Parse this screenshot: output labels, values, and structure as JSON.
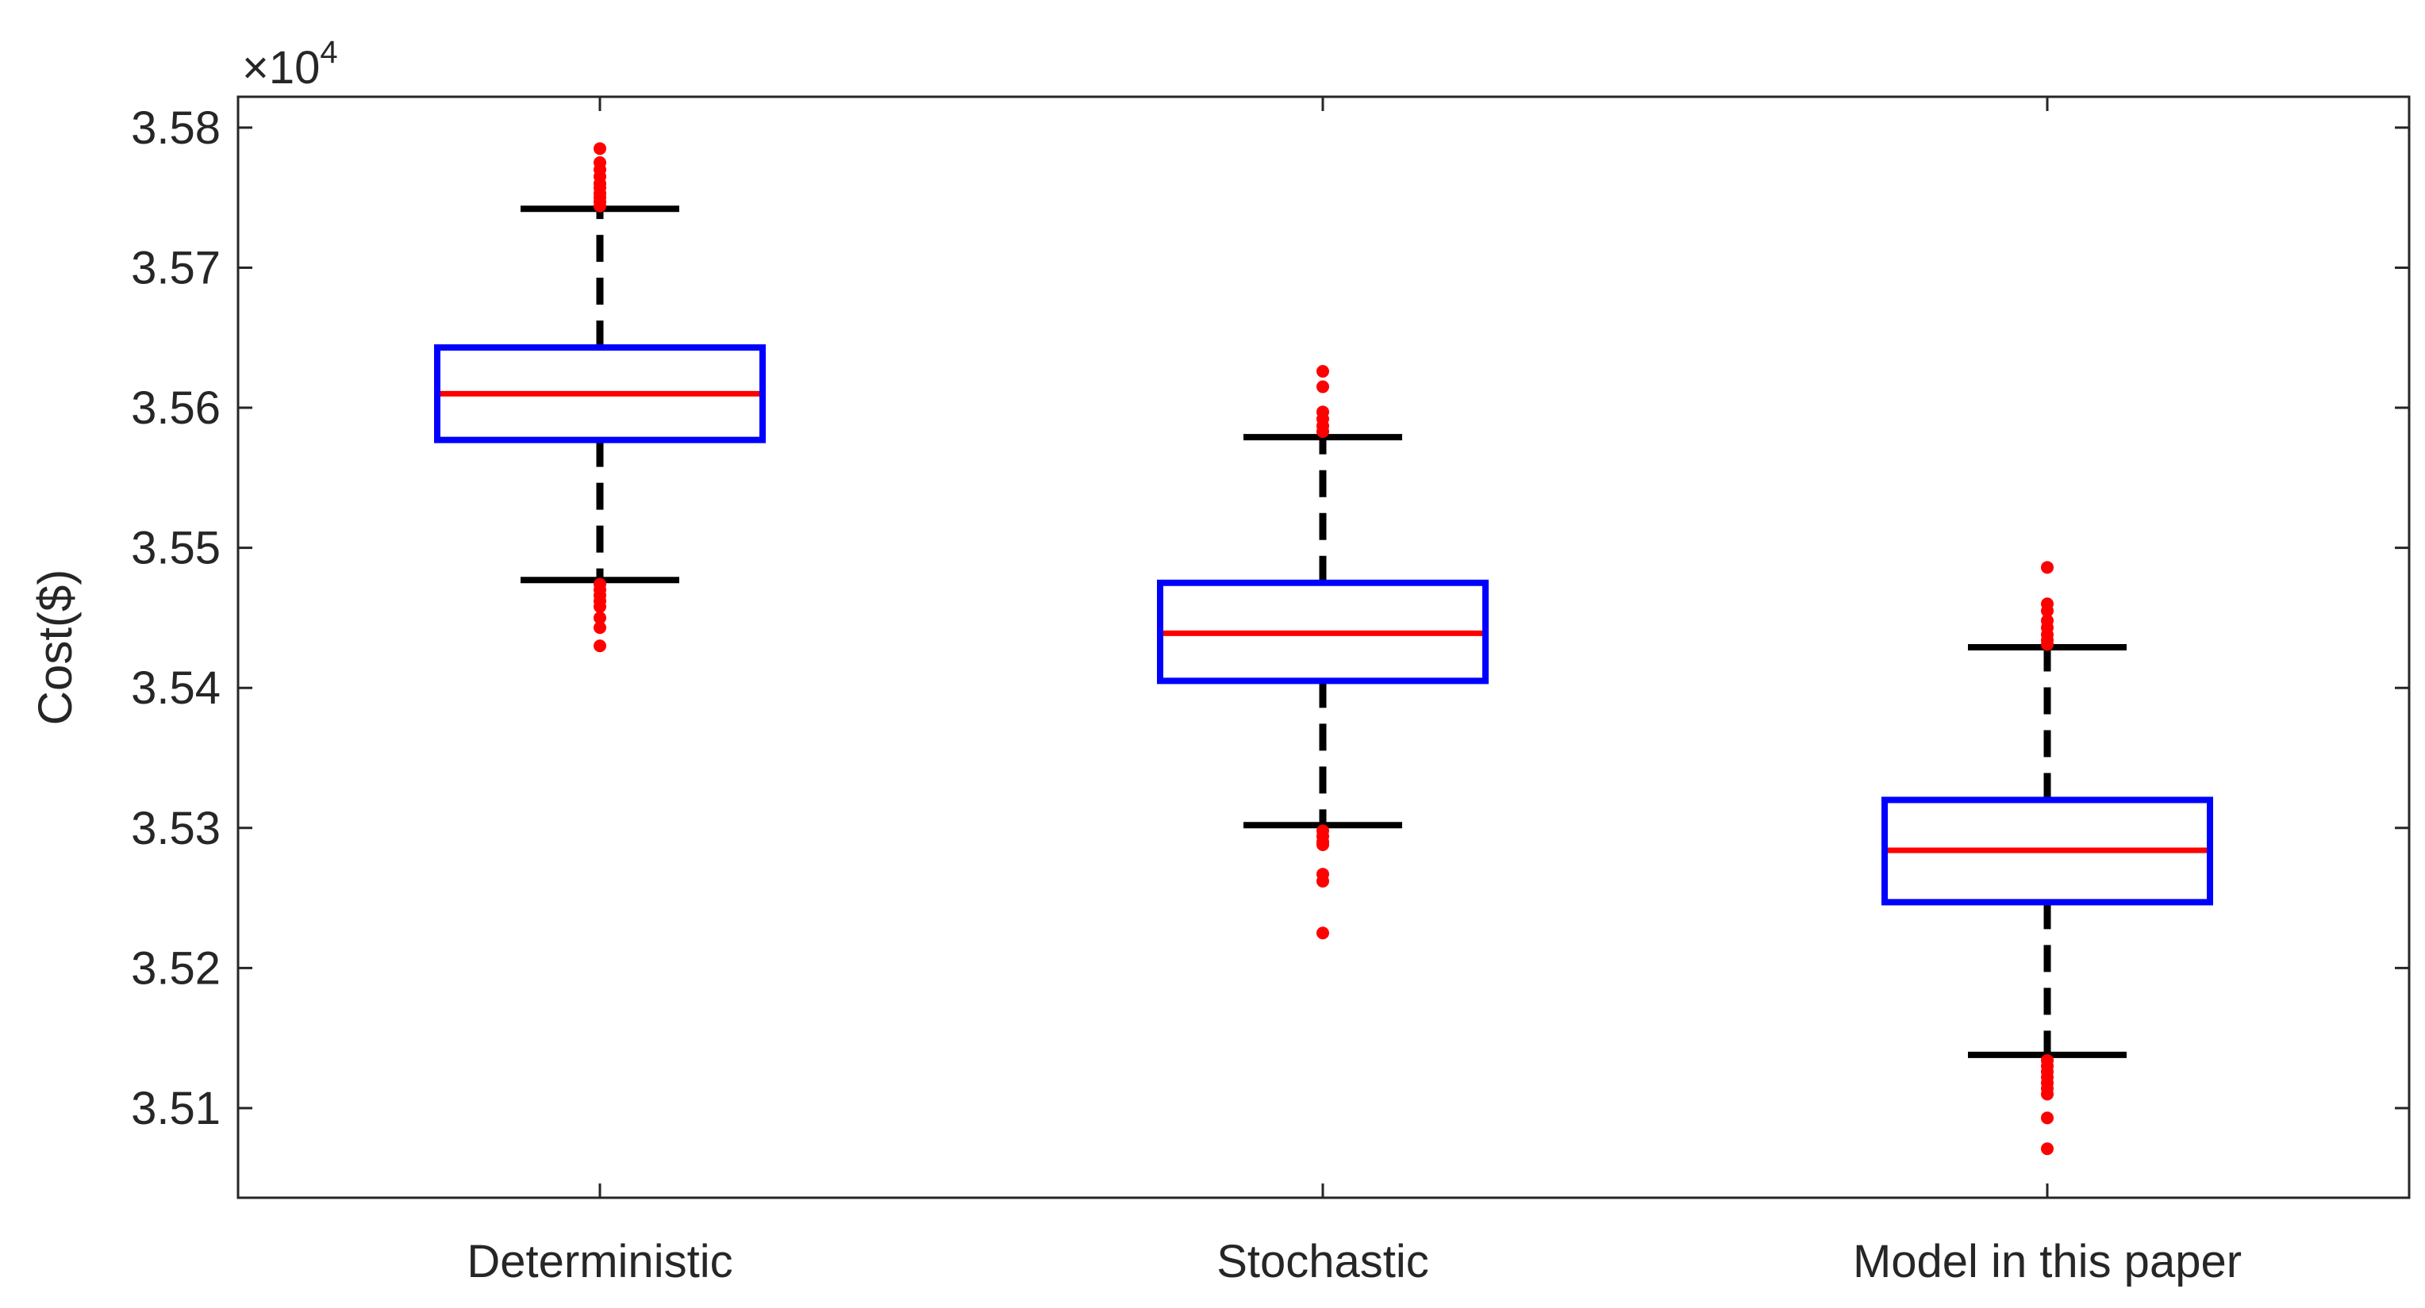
{
  "chart_data": {
    "type": "boxplot",
    "title": "",
    "xlabel": "",
    "ylabel": "Cost($)",
    "y_multiplier_label": "×10",
    "y_multiplier_exponent": "4",
    "ylim": [
      3.5036,
      3.5822
    ],
    "yticks": [
      3.51,
      3.52,
      3.53,
      3.54,
      3.55,
      3.56,
      3.57,
      3.58
    ],
    "ytick_labels": [
      "3.51",
      "3.52",
      "3.53",
      "3.54",
      "3.55",
      "3.56",
      "3.57",
      "3.58"
    ],
    "categories": [
      "Deterministic",
      "Stochastic",
      "Model in this paper"
    ],
    "colors": {
      "box": "#0000ff",
      "median": "#ff0000",
      "whisker": "#000000",
      "outlier": "#ff0000",
      "axis": "#262626"
    },
    "boxes": [
      {
        "name": "Deterministic",
        "q1": 3.5577,
        "median": 3.561,
        "q3": 3.5643,
        "whisker_low": 3.5477,
        "whisker_high": 3.5742,
        "outliers": [
          3.5785,
          3.5775,
          3.577,
          3.5765,
          3.576,
          3.5757,
          3.5753,
          3.575,
          3.5747,
          3.5744,
          3.5474,
          3.547,
          3.5466,
          3.5462,
          3.5458,
          3.545,
          3.5443,
          3.543
        ]
      },
      {
        "name": "Stochastic",
        "q1": 3.5405,
        "median": 3.5439,
        "q3": 3.5475,
        "whisker_low": 3.5302,
        "whisker_high": 3.5579,
        "outliers": [
          3.5626,
          3.5615,
          3.5597,
          3.5592,
          3.5587,
          3.5583,
          3.5298,
          3.5294,
          3.529,
          3.5288,
          3.5267,
          3.5262,
          3.5225
        ]
      },
      {
        "name": "Model in this paper",
        "q1": 3.5247,
        "median": 3.5284,
        "q3": 3.532,
        "whisker_low": 3.5138,
        "whisker_high": 3.5429,
        "outliers": [
          3.5486,
          3.546,
          3.5455,
          3.5448,
          3.5443,
          3.5438,
          3.5434,
          3.5431,
          3.5134,
          3.513,
          3.5126,
          3.5122,
          3.5118,
          3.5114,
          3.511,
          3.5093,
          3.5071
        ]
      }
    ]
  }
}
